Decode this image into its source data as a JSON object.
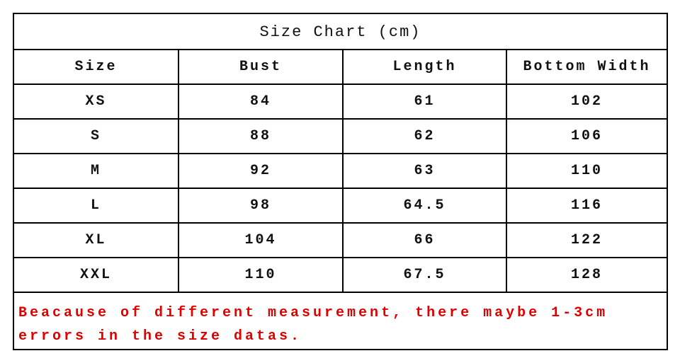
{
  "title": "Size Chart (cm)",
  "headers": [
    "Size",
    "Bust",
    "Length",
    "Bottom Width"
  ],
  "rows": [
    [
      "XS",
      "84",
      "61",
      "102"
    ],
    [
      "S",
      "88",
      "62",
      "106"
    ],
    [
      "M",
      "92",
      "63",
      "110"
    ],
    [
      "L",
      "98",
      "64.5",
      "116"
    ],
    [
      "XL",
      "104",
      "66",
      "122"
    ],
    [
      "XXL",
      "110",
      "67.5",
      "128"
    ]
  ],
  "note": {
    "line1": "Beacause of different measurement, there maybe 1-3cm",
    "line2": "errors in the size datas.",
    "color": "#e00000"
  }
}
